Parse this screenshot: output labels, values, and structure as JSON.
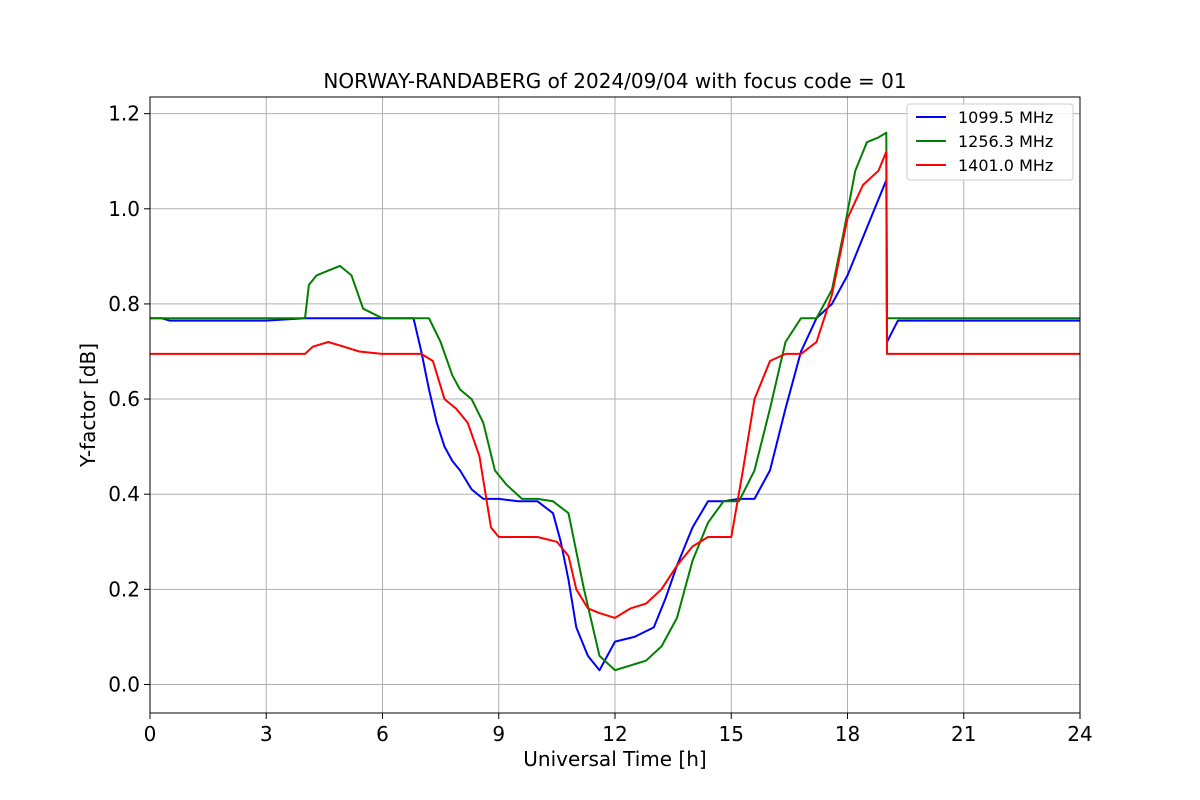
{
  "chart_data": {
    "type": "line",
    "title": "NORWAY-RANDABERG of 2024/09/04 with focus code = 01",
    "xlabel": "Universal Time [h]",
    "ylabel": "Y-factor [dB]",
    "xlim": [
      0,
      24
    ],
    "ylim": [
      -0.06,
      1.235
    ],
    "xticks": [
      0,
      3,
      6,
      9,
      12,
      15,
      18,
      21,
      24
    ],
    "yticks": [
      0.0,
      0.2,
      0.4,
      0.6,
      0.8,
      1.0,
      1.2
    ],
    "xtick_labels": [
      "0",
      "3",
      "6",
      "9",
      "12",
      "15",
      "18",
      "21",
      "24"
    ],
    "ytick_labels": [
      "0.0",
      "0.2",
      "0.4",
      "0.6",
      "0.8",
      "1.0",
      "1.2"
    ],
    "grid": true,
    "legend": "top-right",
    "series": [
      {
        "name": "1099.5 MHz",
        "color": "#0000ff",
        "x": [
          0,
          0.3,
          0.5,
          1,
          2,
          3,
          4,
          5,
          6,
          6.8,
          7.0,
          7.2,
          7.4,
          7.6,
          7.8,
          8.0,
          8.3,
          8.6,
          9.0,
          9.5,
          10.0,
          10.4,
          10.6,
          10.8,
          11.0,
          11.3,
          11.6,
          12.0,
          12.5,
          13.0,
          13.3,
          13.6,
          14.0,
          14.4,
          14.8,
          15.2,
          15.6,
          16.0,
          16.4,
          16.8,
          17.2,
          17.6,
          18.0,
          18.4,
          18.8,
          19.0,
          19.02,
          19.3,
          20,
          21,
          22,
          23,
          24
        ],
        "y": [
          0.77,
          0.77,
          0.765,
          0.765,
          0.765,
          0.765,
          0.77,
          0.77,
          0.77,
          0.77,
          0.7,
          0.62,
          0.55,
          0.5,
          0.47,
          0.45,
          0.41,
          0.39,
          0.39,
          0.385,
          0.385,
          0.36,
          0.3,
          0.22,
          0.12,
          0.06,
          0.03,
          0.09,
          0.1,
          0.12,
          0.18,
          0.25,
          0.33,
          0.385,
          0.385,
          0.39,
          0.39,
          0.45,
          0.58,
          0.7,
          0.77,
          0.8,
          0.86,
          0.94,
          1.02,
          1.06,
          0.72,
          0.765,
          0.765,
          0.765,
          0.765,
          0.765,
          0.765
        ]
      },
      {
        "name": "1256.3 MHz",
        "color": "#008000",
        "x": [
          0,
          1,
          2,
          3,
          4,
          4.1,
          4.3,
          4.6,
          4.9,
          5.2,
          5.5,
          6,
          6.5,
          7.0,
          7.2,
          7.5,
          7.8,
          8.0,
          8.3,
          8.6,
          8.9,
          9.2,
          9.6,
          10.0,
          10.4,
          10.8,
          11.2,
          11.6,
          12.0,
          12.4,
          12.8,
          13.2,
          13.6,
          14.0,
          14.4,
          14.8,
          15.2,
          15.6,
          16.0,
          16.4,
          16.8,
          17.2,
          17.6,
          17.9,
          18.2,
          18.5,
          18.8,
          19.0,
          19.02,
          19.3,
          20,
          21,
          22,
          23,
          24
        ],
        "y": [
          0.77,
          0.77,
          0.77,
          0.77,
          0.77,
          0.84,
          0.86,
          0.87,
          0.88,
          0.86,
          0.79,
          0.77,
          0.77,
          0.77,
          0.77,
          0.72,
          0.65,
          0.62,
          0.6,
          0.55,
          0.45,
          0.42,
          0.39,
          0.39,
          0.385,
          0.36,
          0.2,
          0.06,
          0.03,
          0.04,
          0.05,
          0.08,
          0.14,
          0.26,
          0.34,
          0.385,
          0.385,
          0.45,
          0.58,
          0.72,
          0.77,
          0.77,
          0.83,
          0.95,
          1.08,
          1.14,
          1.15,
          1.16,
          0.77,
          0.77,
          0.77,
          0.77,
          0.77,
          0.77,
          0.77
        ]
      },
      {
        "name": "1401.0 MHz",
        "color": "#ff0000",
        "x": [
          0,
          1,
          2,
          3,
          4,
          4.2,
          4.6,
          5.0,
          5.4,
          6,
          6.5,
          7.0,
          7.3,
          7.6,
          7.9,
          8.2,
          8.5,
          8.8,
          9.0,
          9.5,
          10.0,
          10.5,
          10.8,
          11.0,
          11.3,
          11.6,
          12.0,
          12.4,
          12.8,
          13.2,
          13.6,
          14.0,
          14.4,
          14.8,
          15.0,
          15.3,
          15.6,
          16.0,
          16.4,
          16.8,
          17.2,
          17.6,
          18.0,
          18.4,
          18.8,
          19.0,
          19.02,
          19.3,
          20,
          21,
          22,
          23,
          24
        ],
        "y": [
          0.695,
          0.695,
          0.695,
          0.695,
          0.695,
          0.71,
          0.72,
          0.71,
          0.7,
          0.695,
          0.695,
          0.695,
          0.68,
          0.6,
          0.58,
          0.55,
          0.48,
          0.33,
          0.31,
          0.31,
          0.31,
          0.3,
          0.27,
          0.2,
          0.16,
          0.15,
          0.14,
          0.16,
          0.17,
          0.2,
          0.25,
          0.29,
          0.31,
          0.31,
          0.31,
          0.45,
          0.6,
          0.68,
          0.695,
          0.695,
          0.72,
          0.82,
          0.98,
          1.05,
          1.08,
          1.12,
          0.695,
          0.695,
          0.695,
          0.695,
          0.695,
          0.695,
          0.695
        ]
      }
    ]
  }
}
